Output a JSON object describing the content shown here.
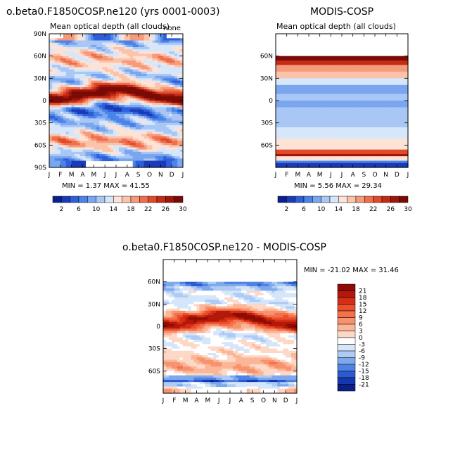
{
  "chart_data": [
    {
      "id": "p1",
      "type": "heatmap",
      "title": "o.beta0.F1850COSP.ne120 (yrs 0001-0003)",
      "subtitle": "Mean optical depth (all clouds)",
      "corner_label": "none",
      "stats": "MIN =    1.37 MAX =   41.55",
      "x_ticks": [
        "J",
        "F",
        "M",
        "A",
        "M",
        "J",
        "J",
        "A",
        "S",
        "O",
        "N",
        "D",
        "J"
      ],
      "y_ticks": [
        "90N",
        "60N",
        "30N",
        "0",
        "30S",
        "60S",
        "90S"
      ],
      "ylim": [
        -90,
        90
      ]
    },
    {
      "id": "p2",
      "type": "heatmap",
      "title": "MODIS-COSP",
      "subtitle": "Mean optical depth (all clouds)",
      "stats": "MIN =    5.56 MAX =   29.34",
      "x_ticks": [
        "J",
        "F",
        "M",
        "A",
        "M",
        "J",
        "J",
        "A",
        "S",
        "O",
        "N",
        "D",
        "J"
      ],
      "y_ticks": [
        "60N",
        "30N",
        "0",
        "30S",
        "60S"
      ],
      "ylim": [
        -90,
        90
      ]
    },
    {
      "id": "p3",
      "type": "heatmap",
      "title": "o.beta0.F1850COSP.ne120 - MODIS-COSP",
      "stats": "MIN = -21.02 MAX =   31.46",
      "x_ticks": [
        "J",
        "F",
        "M",
        "A",
        "M",
        "J",
        "J",
        "A",
        "S",
        "O",
        "N",
        "D",
        "J"
      ],
      "y_ticks": [
        "60N",
        "30N",
        "0",
        "30S",
        "60S"
      ],
      "ylim": [
        -90,
        90
      ]
    }
  ],
  "colorbars": {
    "top": {
      "ticks": [
        "2",
        "6",
        "10",
        "14",
        "18",
        "22",
        "26",
        "30"
      ],
      "colors": [
        "#0a1f8f",
        "#1a3ab8",
        "#2e5fd8",
        "#4b83e8",
        "#7aa6ef",
        "#a9c7f5",
        "#d7e7fb",
        "#fde3d6",
        "#fbc3aa",
        "#f59a7a",
        "#ee6e4d",
        "#e04a2b",
        "#c42b14",
        "#9f160a",
        "#7a0a05"
      ]
    },
    "diff": {
      "ticks": [
        "21",
        "18",
        "15",
        "12",
        "9",
        "6",
        "3",
        "0",
        "-3",
        "-6",
        "-9",
        "-12",
        "-15",
        "-18",
        "-21"
      ],
      "colors": [
        "#8f0c05",
        "#b3180b",
        "#d42e14",
        "#ec4f2b",
        "#f4704a",
        "#f7926e",
        "#fbb597",
        "#fdd8c6",
        "#ffffff",
        "#d6e6fa",
        "#aecbf5",
        "#7ea8ec",
        "#4e82e3",
        "#2a5bd1",
        "#1737b0",
        "#0b1e8a"
      ]
    }
  }
}
